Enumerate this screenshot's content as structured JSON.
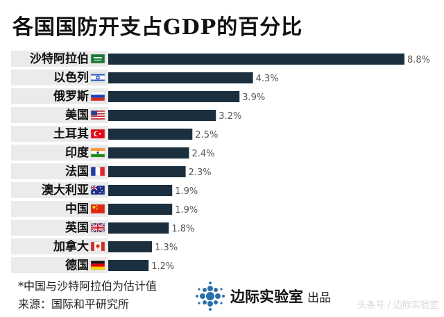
{
  "title": "各国国防开支占GDP的百分比",
  "chart_data": {
    "type": "bar",
    "orientation": "horizontal",
    "title": "各国国防开支占GDP的百分比",
    "categories": [
      "沙特阿拉伯",
      "以色列",
      "俄罗斯",
      "美国",
      "土耳其",
      "印度",
      "法国",
      "澳大利亚",
      "中国",
      "英国",
      "加拿大",
      "德国"
    ],
    "values": [
      8.8,
      4.3,
      3.9,
      3.2,
      2.5,
      2.4,
      2.3,
      1.9,
      1.9,
      1.8,
      1.3,
      1.2
    ],
    "value_labels": [
      "8.8%",
      "4.3%",
      "3.9%",
      "3.2%",
      "2.5%",
      "2.4%",
      "2.3%",
      "1.9%",
      "1.9%",
      "1.8%",
      "1.3%",
      "1.2%"
    ],
    "flags": [
      "saudi-arabia-flag-icon",
      "israel-flag-icon",
      "russia-flag-icon",
      "usa-flag-icon",
      "turkey-flag-icon",
      "india-flag-icon",
      "france-flag-icon",
      "australia-flag-icon",
      "china-flag-icon",
      "uk-flag-icon",
      "canada-flag-icon",
      "germany-flag-icon"
    ],
    "xlim": [
      0,
      8.8
    ],
    "bar_color": "#1b2f3e",
    "row_shade_color": "#ebebeb",
    "value_label_color": "#555555"
  },
  "footer": {
    "note": "*中国与沙特阿拉伯为估计值",
    "source": "来源：国际和平研究所"
  },
  "brand": {
    "name": "边际实验室",
    "suffix": "出品",
    "logo_icon": "dot-cluster-logo-icon",
    "logo_color": "#2b6fa8"
  },
  "watermark": "头条号 / 边际实验室"
}
